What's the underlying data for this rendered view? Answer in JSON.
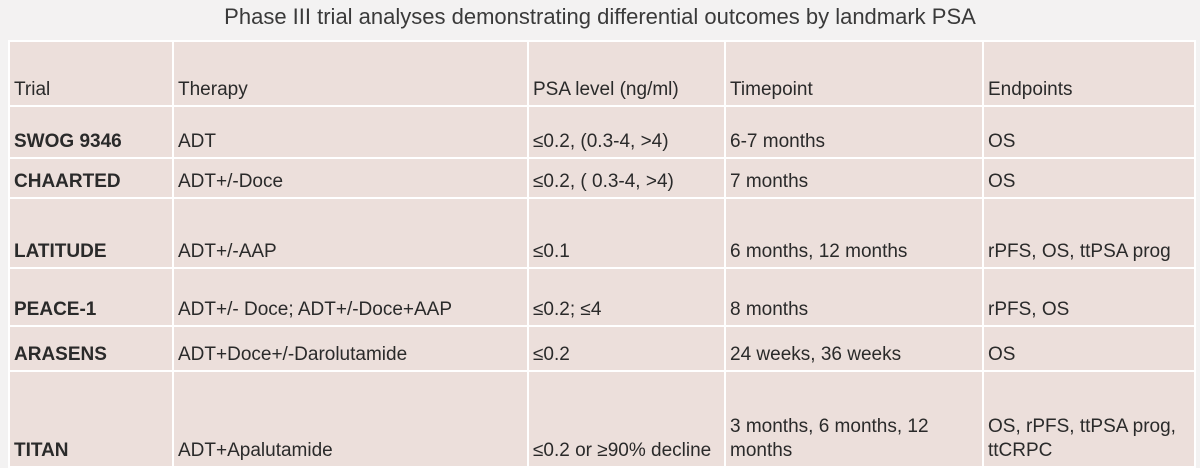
{
  "title": "Phase III trial analyses demonstrating differential outcomes by landmark PSA",
  "table": {
    "header": [
      "Trial",
      "Therapy",
      "PSA level (ng/ml)",
      "Timepoint",
      "Endpoints"
    ],
    "rows": [
      [
        "SWOG 9346",
        "ADT",
        "≤0.2, (0.3-4, >4)",
        "6-7 months",
        "OS"
      ],
      [
        "CHAARTED",
        "ADT+/-Doce",
        "≤0.2, ( 0.3-4, >4)",
        "7 months",
        "OS"
      ],
      [
        "LATITUDE",
        "ADT+/-AAP",
        "≤0.1",
        "6 months, 12 months",
        "rPFS, OS, ttPSA prog"
      ],
      [
        "PEACE-1",
        "ADT+/- Doce; ADT+/-Doce+AAP",
        "≤0.2; ≤4",
        "8 months",
        "rPFS, OS"
      ],
      [
        "ARASENS",
        "ADT+Doce+/-Darolutamide",
        "≤0.2",
        "24 weeks, 36 weeks",
        "OS"
      ],
      [
        "TITAN",
        "ADT+Apalutamide",
        "≤0.2 or ≥90% decline",
        "3 months, 6 months, 12 months",
        "OS, rPFS, ttPSA prog, ttCRPC"
      ]
    ]
  }
}
